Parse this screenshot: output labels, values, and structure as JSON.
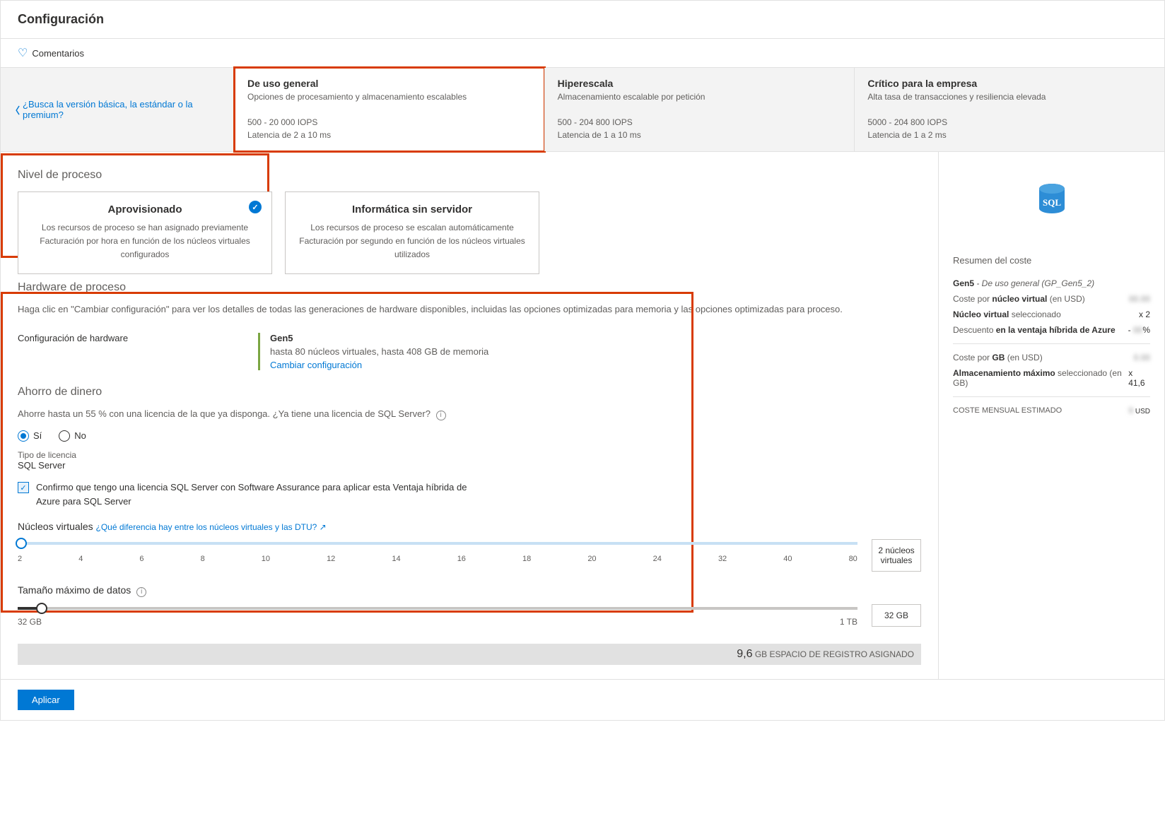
{
  "header": {
    "title": "Configuración"
  },
  "toolbar": {
    "comments": "Comentarios"
  },
  "back_link": "¿Busca la versión básica, la estándar o la premium?",
  "tiers": {
    "general": {
      "title": "De uso general",
      "subtitle": "Opciones de procesamiento y almacenamiento escalables",
      "iops": "500 - 20 000 IOPS",
      "latency": "Latencia de 2 a 10 ms"
    },
    "hyperscale": {
      "title": "Hiperescala",
      "subtitle": "Almacenamiento escalable por petición",
      "iops": "500 - 204 800 IOPS",
      "latency": "Latencia de 1 a 10 ms"
    },
    "critical": {
      "title": "Crítico para la empresa",
      "subtitle": "Alta tasa de transacciones y resiliencia elevada",
      "iops": "5000 - 204 800 IOPS",
      "latency": "Latencia de 1 a 2 ms"
    }
  },
  "compute_tier": {
    "section_title": "Nivel de proceso",
    "provisioned": {
      "title": "Aprovisionado",
      "line1": "Los recursos de proceso se han asignado previamente",
      "line2": "Facturación por hora en función de los núcleos virtuales configurados"
    },
    "serverless": {
      "title": "Informática sin servidor",
      "line1": "Los recursos de proceso se escalan automáticamente",
      "line2": "Facturación por segundo en función de los núcleos virtuales utilizados"
    }
  },
  "hardware": {
    "section_title": "Hardware de proceso",
    "description": "Haga clic en \"Cambiar configuración\" para ver los detalles de todas las generaciones de hardware disponibles, incluidas las opciones optimizadas para memoria y las opciones optimizadas para proceso.",
    "config_label": "Configuración de hardware",
    "gen_title": "Gen5",
    "gen_sub": "hasta 80 núcleos virtuales, hasta 408 GB de memoria",
    "change_link": "Cambiar configuración"
  },
  "savings": {
    "section_title": "Ahorro de dinero",
    "description": "Ahorre hasta un 55 % con una licencia de la que ya disponga. ¿Ya tiene una licencia de SQL Server?",
    "yes": "Sí",
    "no": "No",
    "license_type_label": "Tipo de licencia",
    "license_type_value": "SQL Server",
    "confirm_text": "Confirmo que tengo una licencia SQL Server con Software Assurance para aplicar esta Ventaja híbrida de Azure para SQL Server"
  },
  "vcores": {
    "title": "Núcleos virtuales",
    "help_link": "¿Qué diferencia hay entre los núcleos virtuales y las DTU?",
    "ticks": [
      "2",
      "4",
      "6",
      "8",
      "10",
      "12",
      "14",
      "16",
      "18",
      "20",
      "24",
      "32",
      "40",
      "80"
    ],
    "value_label": "2 núcleos virtuales"
  },
  "datasize": {
    "title": "Tamaño máximo de datos",
    "min_label": "32 GB",
    "max_label": "1 TB",
    "value_label": "32 GB"
  },
  "log_space": {
    "value": "9,6",
    "label": "GB ESPACIO DE REGISTRO ASIGNADO"
  },
  "footer": {
    "apply": "Aplicar"
  },
  "cost": {
    "summary_title": "Resumen del coste",
    "gen_line_prefix": "Gen5",
    "gen_line_suffix": " - De uso general (GP_Gen5_2)",
    "cost_per_vcore": "Coste por ",
    "cost_per_vcore_bold": "núcleo virtual",
    "cost_per_vcore_suffix": " (en USD)",
    "vcore_selected_bold": "Núcleo virtual",
    "vcore_selected_suffix": " seleccionado",
    "vcore_selected_value": "x 2",
    "discount_prefix": "Descuento ",
    "discount_bold": "en la ventaja híbrida de Azure",
    "discount_value": "-    %",
    "cost_per_gb_prefix": "Coste por ",
    "cost_per_gb_bold": "GB",
    "cost_per_gb_suffix": " (en USD)",
    "storage_bold": "Almacenamiento máximo",
    "storage_suffix": " seleccionado (en GB)",
    "storage_value": "x 41,6",
    "monthly_label": "COSTE MENSUAL ESTIMADO",
    "monthly_value_hidden": "      9",
    "monthly_currency": " USD"
  }
}
